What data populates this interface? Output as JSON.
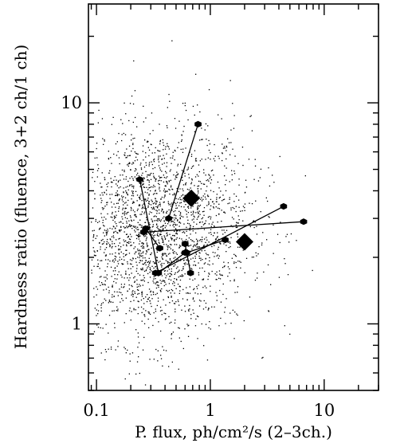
{
  "chart_data": {
    "type": "scatter",
    "xlabel": "P. flux, ph/cm²/s (2–3ch.)",
    "ylabel": "Hardness ratio (fluence, 3+2 ch/1 ch)",
    "xscale": "log",
    "yscale": "log",
    "xlim": [
      0.085,
      30
    ],
    "ylim": [
      0.5,
      28
    ],
    "x_ticks": [
      {
        "value": 0.1,
        "label": "0.1"
      },
      {
        "value": 1,
        "label": "1"
      },
      {
        "value": 10,
        "label": "10"
      }
    ],
    "y_ticks": [
      {
        "value": 1,
        "label": "1"
      },
      {
        "value": 10,
        "label": "10"
      }
    ],
    "grid": false,
    "background_cloud": {
      "description_of_mark": "small dots",
      "approx_count": 2600,
      "center": {
        "x": 0.32,
        "y": 2.6
      },
      "color": "#000000"
    },
    "series": [
      {
        "marker": "hexagon",
        "connected": true,
        "segments": [
          {
            "points": [
              {
                "x": 0.24,
                "y": 4.5
              },
              {
                "x": 0.35,
                "y": 1.7
              }
            ]
          },
          {
            "points": [
              {
                "x": 0.35,
                "y": 1.7
              },
              {
                "x": 0.6,
                "y": 2.1
              }
            ]
          },
          {
            "points": [
              {
                "x": 0.43,
                "y": 3.0
              },
              {
                "x": 0.78,
                "y": 8.0
              }
            ]
          },
          {
            "points": [
              {
                "x": 0.26,
                "y": 2.6
              },
              {
                "x": 6.6,
                "y": 2.9
              }
            ]
          },
          {
            "points": [
              {
                "x": 0.33,
                "y": 1.7
              },
              {
                "x": 4.4,
                "y": 3.4
              }
            ]
          },
          {
            "points": [
              {
                "x": 0.27,
                "y": 2.7
              },
              {
                "x": 0.36,
                "y": 2.2
              }
            ]
          },
          {
            "points": [
              {
                "x": 0.6,
                "y": 2.3
              },
              {
                "x": 0.67,
                "y": 1.7
              }
            ]
          },
          {
            "points": [
              {
                "x": 0.62,
                "y": 2.1
              },
              {
                "x": 1.35,
                "y": 2.4
              }
            ]
          }
        ]
      },
      {
        "marker": "diamond",
        "connected": false,
        "points": [
          {
            "x": 0.68,
            "y": 3.7
          },
          {
            "x": 2.0,
            "y": 2.35
          }
        ]
      }
    ],
    "colors": {
      "ink": "#000000",
      "background": "#ffffff"
    }
  }
}
